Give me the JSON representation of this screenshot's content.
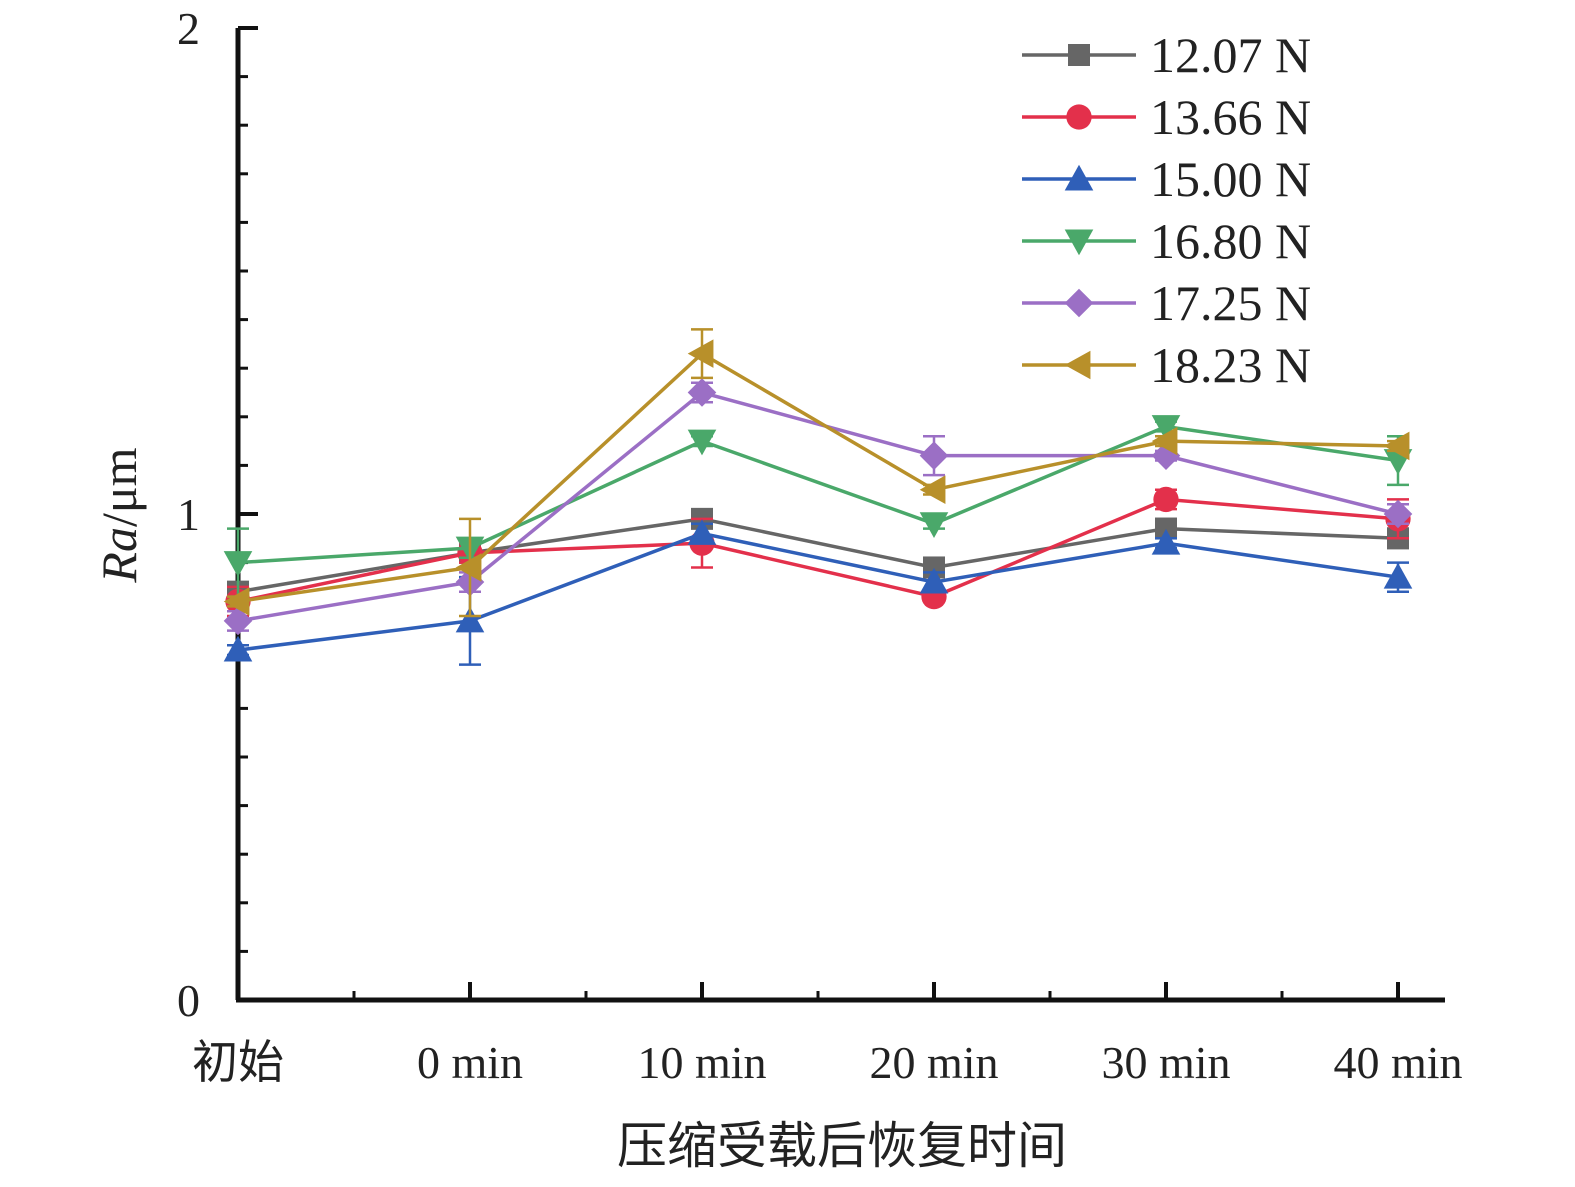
{
  "chart_data": {
    "type": "line",
    "title": "",
    "xlabel": "压缩受载后恢复时间",
    "ylabel_main": "Ra",
    "ylabel_unit": "/μm",
    "categories": [
      "初始",
      "0 min",
      "10 min",
      "20 min",
      "30 min",
      "40 min"
    ],
    "ylim": [
      0,
      2
    ],
    "yticks": [
      "0",
      "1",
      "2"
    ],
    "grid": false,
    "legend_position": "top-right",
    "series": [
      {
        "name": "12.07 N",
        "marker": "square",
        "color": "#666666",
        "values": [
          0.84,
          0.92,
          0.99,
          0.89,
          0.97,
          0.95
        ],
        "errors": [
          0.02,
          0.03,
          0.01,
          0.02,
          0.02,
          0.02
        ]
      },
      {
        "name": "13.66 N",
        "marker": "circle",
        "color": "#e3304b",
        "values": [
          0.82,
          0.92,
          0.94,
          0.83,
          1.03,
          0.99
        ],
        "errors": [
          0.03,
          0.02,
          0.05,
          0.01,
          0.02,
          0.04
        ]
      },
      {
        "name": "15.00 N",
        "marker": "triangle-up",
        "color": "#2f5fb8",
        "values": [
          0.72,
          0.78,
          0.96,
          0.86,
          0.94,
          0.87
        ],
        "errors": [
          0.01,
          0.09,
          0.02,
          0.02,
          0.01,
          0.03
        ]
      },
      {
        "name": "16.80 N",
        "marker": "triangle-down",
        "color": "#4aa86a",
        "values": [
          0.9,
          0.93,
          1.15,
          0.98,
          1.18,
          1.11
        ],
        "errors": [
          0.07,
          0.02,
          0.01,
          0.01,
          0.01,
          0.05
        ]
      },
      {
        "name": "17.25 N",
        "marker": "diamond",
        "color": "#9b6fc5",
        "values": [
          0.78,
          0.86,
          1.25,
          1.12,
          1.12,
          1.0
        ],
        "errors": [
          0.02,
          0.02,
          0.02,
          0.04,
          0.01,
          0.02
        ]
      },
      {
        "name": "18.23 N",
        "marker": "triangle-left",
        "color": "#b8902a",
        "values": [
          0.82,
          0.89,
          1.33,
          1.05,
          1.15,
          1.14
        ],
        "errors": [
          0.01,
          0.1,
          0.05,
          0.01,
          0.01,
          0.01
        ]
      }
    ]
  }
}
